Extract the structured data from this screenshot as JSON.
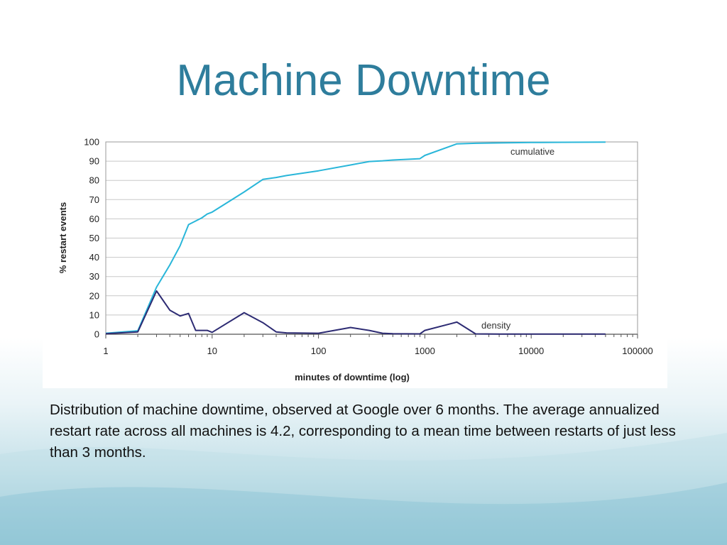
{
  "slide": {
    "title": "Machine Downtime",
    "caption": "Distribution of machine downtime, observed at Google over 6 months.  The average annualized restart rate across all machines is 4.2, corresponding to a mean time between restarts of just less than 3 months."
  },
  "colors": {
    "title": "#2e7d9c",
    "cumulative": "#29b6d9",
    "density": "#2d2b73",
    "grid": "#c8c8c8"
  },
  "chart_data": {
    "type": "line",
    "xlabel": "minutes of downtime (log)",
    "ylabel": "% restart events",
    "xscale": "log",
    "xlim": [
      1,
      100000
    ],
    "ylim": [
      0,
      100
    ],
    "x_ticks": [
      "1",
      "10",
      "100",
      "1000",
      "10000",
      "100000"
    ],
    "y_ticks": [
      "0",
      "10",
      "20",
      "30",
      "40",
      "50",
      "60",
      "70",
      "80",
      "90",
      "100"
    ],
    "grid": "horizontal",
    "series": [
      {
        "name": "cumulative",
        "x": [
          1,
          2,
          3,
          4,
          5,
          6,
          8,
          9,
          10,
          20,
          30,
          40,
          50,
          100,
          200,
          300,
          400,
          500,
          900,
          1000,
          2000,
          3000,
          5000,
          10000,
          20000,
          50000
        ],
        "y": [
          0.5,
          1.8,
          24.5,
          36,
          46,
          57,
          60.5,
          62.5,
          63.5,
          74,
          80.5,
          81.5,
          82.5,
          85,
          88,
          89.8,
          90.2,
          90.6,
          91.3,
          93,
          99,
          99.3,
          99.5,
          99.7,
          99.8,
          99.9
        ]
      },
      {
        "name": "density",
        "x": [
          1,
          2,
          3,
          4,
          5,
          6,
          7,
          8,
          9,
          10,
          20,
          30,
          40,
          50,
          100,
          200,
          300,
          400,
          500,
          900,
          1000,
          2000,
          3000,
          5000,
          10000,
          20000,
          50000
        ],
        "y": [
          0.3,
          1.2,
          22.5,
          12.5,
          9.5,
          10.8,
          2,
          2,
          2,
          1,
          11.2,
          6,
          1.2,
          0.7,
          0.5,
          3.5,
          2,
          0.5,
          0.3,
          0.2,
          2,
          6.3,
          0.2,
          0.1,
          0.1,
          0.1,
          0.1
        ]
      }
    ]
  }
}
